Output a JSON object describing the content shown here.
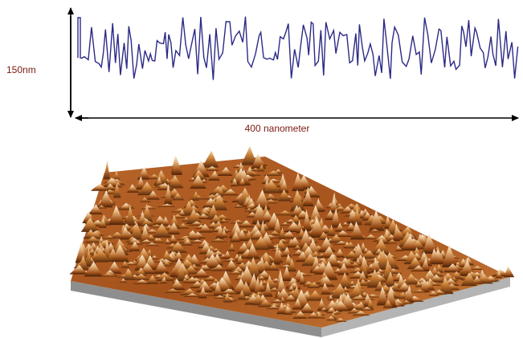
{
  "profile": {
    "height_label": "150nm",
    "width_label": "400 nanometer"
  }
}
